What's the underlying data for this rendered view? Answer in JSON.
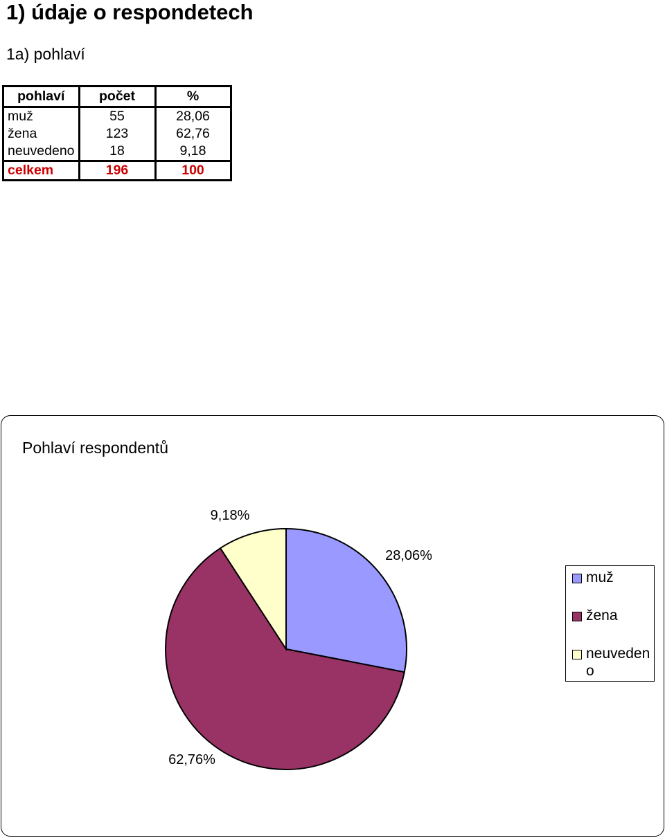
{
  "heading": "1) údaje o respondetech",
  "subheading": "1a) pohlaví",
  "table": {
    "headers": [
      "pohlaví",
      "počet",
      "%"
    ],
    "rows": [
      [
        "muž",
        "55",
        "28,06"
      ],
      [
        "žena",
        "123",
        "62,76"
      ],
      [
        "neuvedeno",
        "18",
        "9,18"
      ]
    ],
    "total": [
      "celkem",
      "196",
      "100"
    ]
  },
  "chart_data": {
    "type": "pie",
    "title": "Pohlaví respondentů",
    "categories": [
      "muž",
      "žena",
      "neuvedeno"
    ],
    "values": [
      28.06,
      62.76,
      9.18
    ],
    "data_labels": [
      "28,06%",
      "62,76%",
      "9,18%"
    ],
    "legend_labels": [
      "muž",
      "žena",
      "neuvedeno"
    ],
    "colors": [
      "#9999ff",
      "#993366",
      "#ffffcc"
    ],
    "legend": "right"
  }
}
